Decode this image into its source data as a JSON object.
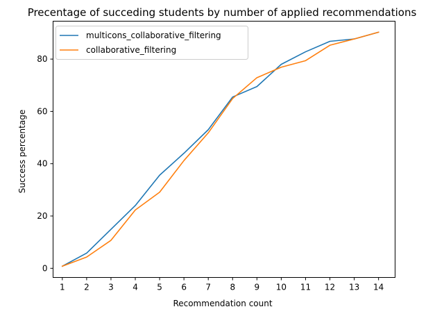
{
  "chart_data": {
    "type": "line",
    "title": "Precentage of succeding students by number of applied recommendations",
    "xlabel": "Recommendation count",
    "ylabel": "Success percentage",
    "x": [
      1,
      2,
      3,
      4,
      5,
      6,
      7,
      8,
      9,
      10,
      11,
      12,
      13,
      14
    ],
    "x_ticks": [
      "1",
      "2",
      "3",
      "4",
      "5",
      "6",
      "7",
      "8",
      "9",
      "10",
      "11",
      "12",
      "13",
      "14"
    ],
    "y_ticks": [
      0,
      20,
      40,
      60,
      80
    ],
    "xlim": [
      0.62,
      14.68
    ],
    "ylim": [
      -3.5,
      94.5
    ],
    "grid": false,
    "legend_position": "top-left",
    "series": [
      {
        "name": "multicons_collaborative_filtering",
        "color": "#1f77b4",
        "values": [
          0.8,
          5.8,
          14.9,
          24.0,
          35.6,
          44.0,
          53.0,
          65.5,
          69.5,
          78.0,
          82.8,
          86.8,
          87.7,
          90.3
        ]
      },
      {
        "name": "collaborative_filtering",
        "color": "#ff7f0e",
        "values": [
          0.8,
          4.3,
          10.7,
          22.3,
          29.1,
          41.2,
          51.8,
          64.9,
          72.9,
          76.9,
          79.4,
          85.3,
          87.7,
          90.3
        ]
      }
    ]
  }
}
